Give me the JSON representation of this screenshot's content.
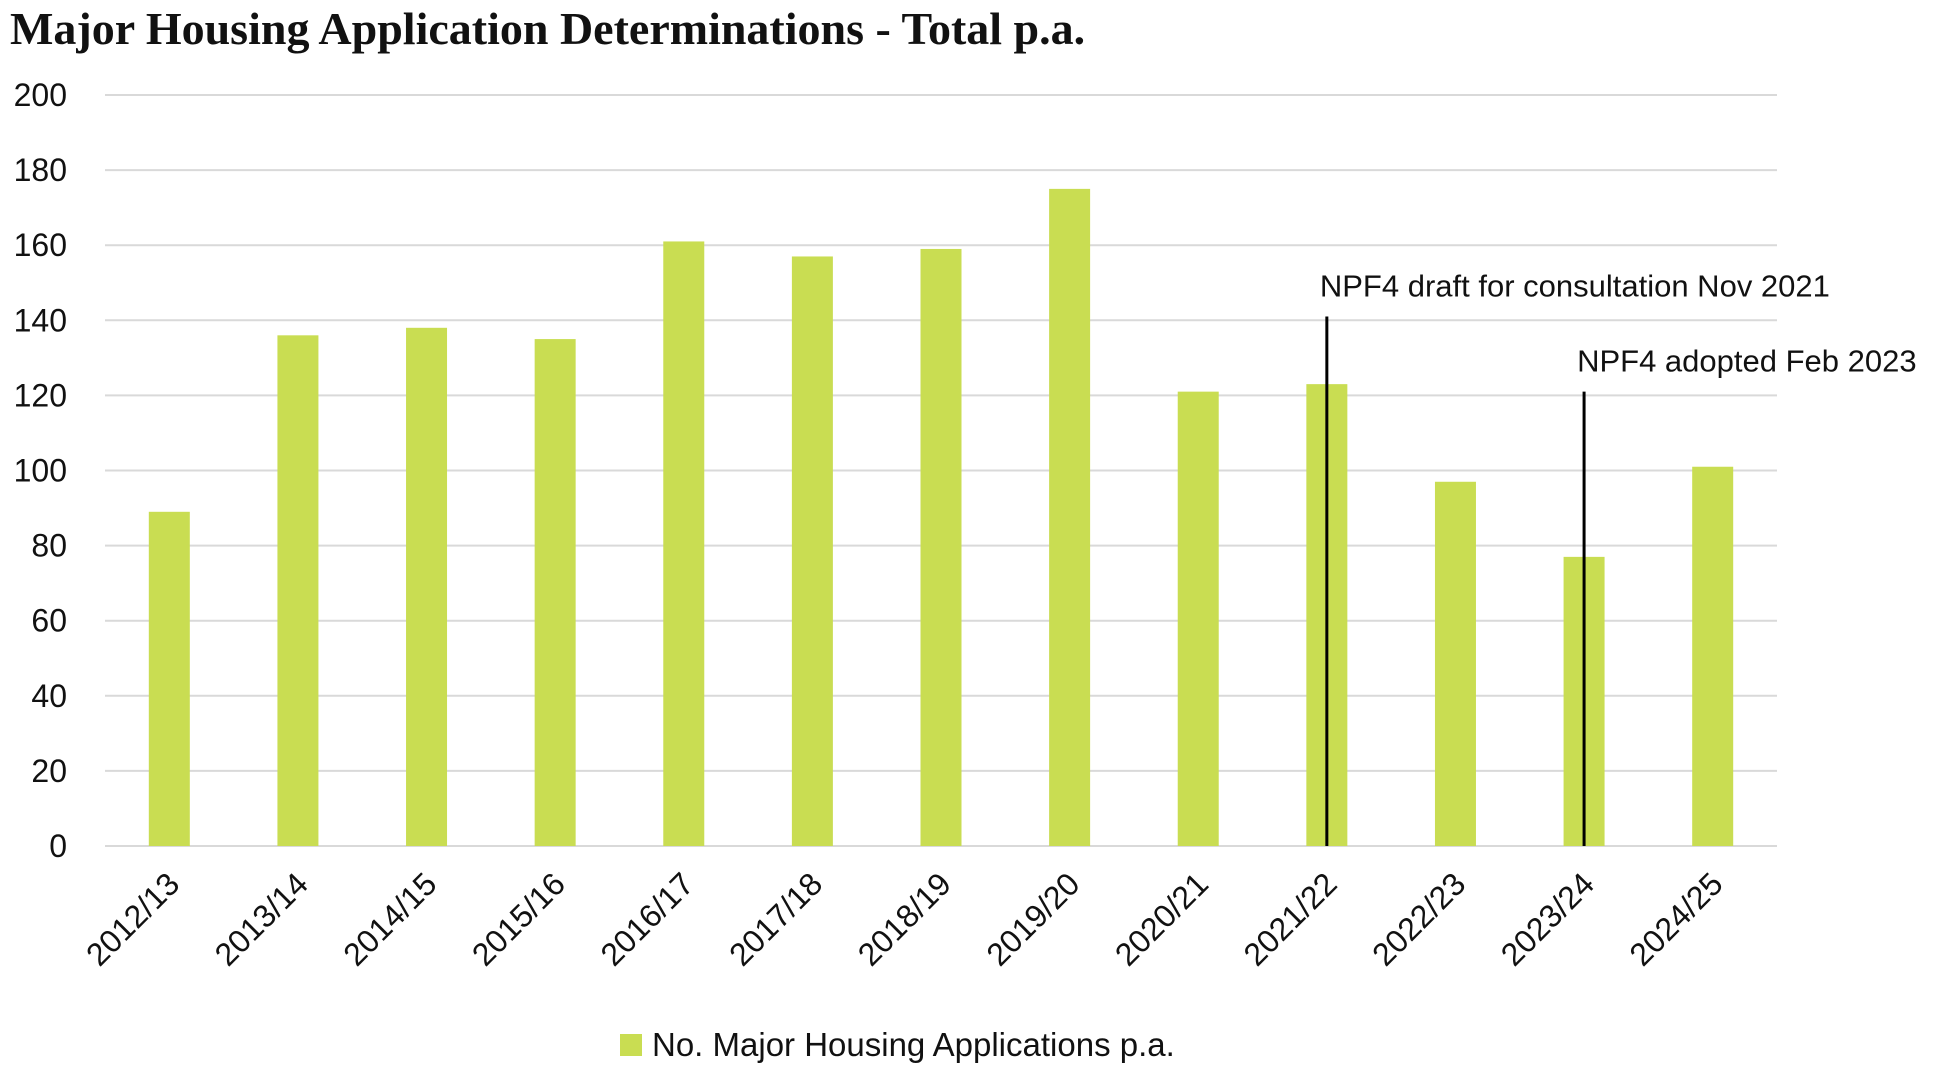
{
  "chart_data": {
    "type": "bar",
    "title": "Major Housing Application Determinations - Total p.a.",
    "categories": [
      "2012/13",
      "2013/14",
      "2014/15",
      "2015/16",
      "2016/17",
      "2017/18",
      "2018/19",
      "2019/20",
      "2020/21",
      "2021/22",
      "2022/23",
      "2023/24",
      "2024/25"
    ],
    "series": [
      {
        "name": "No. Major Housing Applications p.a.",
        "values": [
          89,
          136,
          138,
          135,
          161,
          157,
          159,
          175,
          121,
          123,
          97,
          77,
          101
        ],
        "color": "#c9dd52"
      }
    ],
    "ylim": [
      0,
      200
    ],
    "yticks": [
      0,
      20,
      40,
      60,
      80,
      100,
      120,
      140,
      160,
      180,
      200
    ],
    "grid": true,
    "legend_position": "bottom",
    "xlabel": "",
    "ylabel": "",
    "annotations": [
      {
        "text": "NPF4 draft for consultation Nov 2021",
        "category": "2021/22",
        "value": 141
      },
      {
        "text": "NPF4 adopted Feb 2023",
        "category": "2023/24",
        "value": 121
      }
    ]
  }
}
